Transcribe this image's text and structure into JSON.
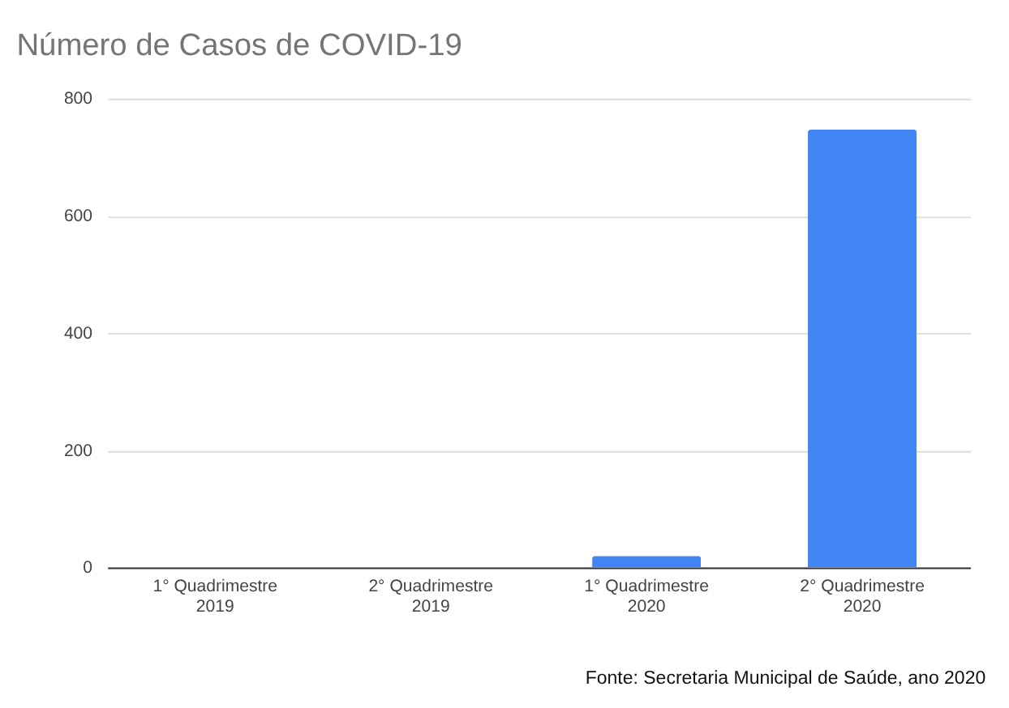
{
  "chart_data": {
    "type": "bar",
    "title": "Número de Casos de COVID-19",
    "categories": [
      "1° Quadrimestre\n2019",
      "2° Quadrimestre\n2019",
      "1° Quadrimestre\n2020",
      "2° Quadrimestre\n2020"
    ],
    "values": [
      0,
      0,
      20,
      747
    ],
    "color": "#4285f4",
    "ylim": [
      0,
      800
    ],
    "yticks": [
      0,
      200,
      400,
      600,
      800
    ],
    "grid": "y",
    "annotations": [
      "Fonte: Secretaria Municipal de Saúde, ano 2020"
    ]
  }
}
